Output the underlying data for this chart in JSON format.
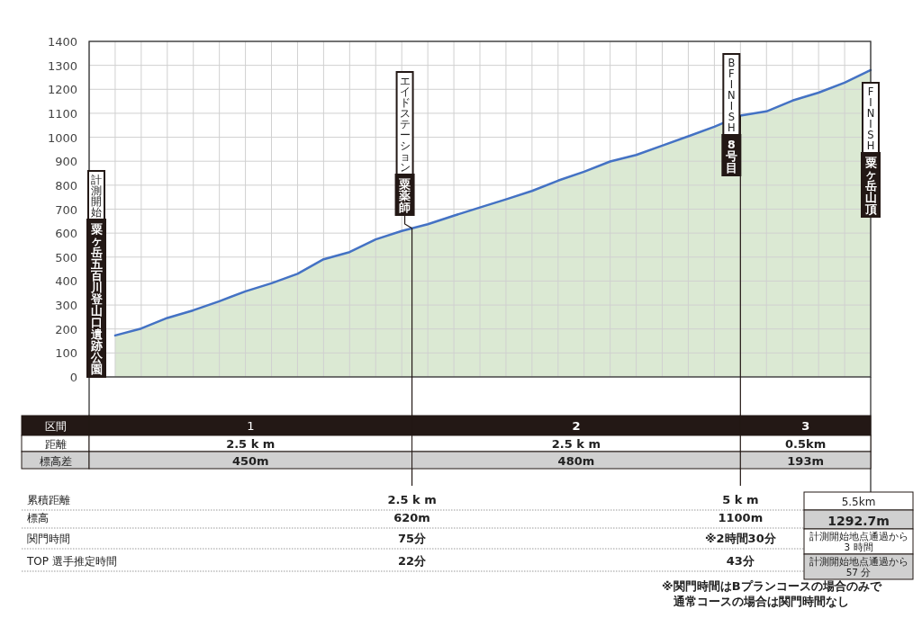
{
  "chart_data": {
    "type": "area",
    "categories": [
      null,
      null,
      null,
      null,
      null,
      null,
      null,
      null,
      null,
      null,
      null,
      null,
      null,
      null,
      null,
      null,
      null,
      null,
      null,
      null,
      null,
      null,
      null,
      null,
      null,
      null,
      null,
      null,
      null,
      null,
      null
    ],
    "values": [
      null,
      173,
      202,
      246,
      278,
      316,
      357,
      391,
      430,
      491,
      521,
      574,
      609,
      637,
      673,
      707,
      741,
      776,
      819,
      856,
      899,
      926,
      965,
      1004,
      1044,
      1090,
      1108,
      1153,
      1186,
      1228,
      1280
    ],
    "color": "#4472c4",
    "ylim": [
      0,
      1400
    ],
    "yticks": [
      0,
      100,
      200,
      300,
      400,
      500,
      600,
      700,
      800,
      900,
      1000,
      1100,
      1200,
      1300,
      1400
    ],
    "grid": true,
    "tick_labels": "y",
    "annotations": [
      "区間",
      "1",
      "2",
      "3",
      "距離",
      "2.5 k m",
      "2.5 k m",
      "0.5km",
      "標高差",
      "450m",
      "480m",
      "193m",
      "累積距離",
      "2.5 k m",
      "5 k m",
      "5.5km",
      "標高",
      "620m",
      "1100m",
      "1292.7m",
      "関門時間",
      "75分",
      "※2時間30分",
      "計測開始地点通過から 3 時間",
      "TOP 選手推定時間",
      "22分",
      "43分",
      "計測開始地点通過から 57 分",
      "※関門時間はBプランコースの場合のみで",
      "通常コースの場合は関門時間なし",
      "計測開始",
      "粟ヶ岳五百川登山口遺跡公園",
      "エイドステーション",
      {
        "text": "粟薬師",
        "y": 620
      },
      "B FINISH",
      {
        "text": "8号目",
        "y": 1090
      },
      "FINISH",
      "粟ヶ岳山頂"
    ]
  }
}
